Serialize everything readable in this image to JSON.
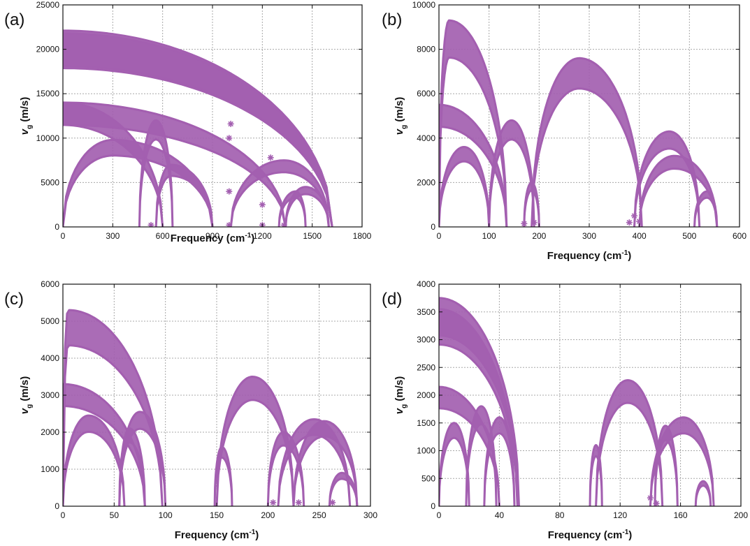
{
  "figure": {
    "series_color": "#a35fb0",
    "grid_color": "#a8a8a8",
    "axis_color": "#111111"
  },
  "chart_data": [
    {
      "panel_label": "(a)",
      "type": "scatter",
      "xlabel": "Frequency (cm",
      "xlabel_sup": "-1",
      "xlabel_end": ")",
      "ylabel": "v",
      "ylabel_sub": "g",
      "ylabel_unit": " (m/s)",
      "xlim": [
        0,
        1800
      ],
      "ylim": [
        0,
        25000
      ],
      "xticks": [
        0,
        300,
        600,
        900,
        1200,
        1500,
        1800
      ],
      "yticks": [
        0,
        5000,
        10000,
        15000,
        20000,
        25000
      ],
      "grid": true,
      "bands": [
        {
          "x0": 0,
          "x1": 900,
          "peak_x": 300,
          "peak": 9800
        },
        {
          "x0": 0,
          "x1": 600,
          "peak_x": 0,
          "peak": 14000
        },
        {
          "x0": 0,
          "x1": 1340,
          "peak_x": 0,
          "peak": 14000
        },
        {
          "x0": 0,
          "x1": 1620,
          "peak_x": 0,
          "peak": 22100
        },
        {
          "x0": 0,
          "x1": 1620,
          "peak_x": 0,
          "peak": 21800
        },
        {
          "x0": 460,
          "x1": 660,
          "peak_x": 560,
          "peak": 12000
        },
        {
          "x0": 560,
          "x1": 900,
          "peak_x": 650,
          "peak": 7000
        },
        {
          "x0": 1010,
          "x1": 1600,
          "peak_x": 1330,
          "peak": 7500
        },
        {
          "x0": 1340,
          "x1": 1600,
          "peak_x": 1460,
          "peak": 4500
        },
        {
          "x0": 1300,
          "x1": 1460,
          "peak_x": 1400,
          "peak": 4000
        }
      ],
      "markers": [
        {
          "x": 1000,
          "y": 4000
        },
        {
          "x": 1000,
          "y": 10000
        },
        {
          "x": 1010,
          "y": 11600
        },
        {
          "x": 1200,
          "y": 2500
        },
        {
          "x": 1200,
          "y": 200
        },
        {
          "x": 1000,
          "y": 200
        },
        {
          "x": 530,
          "y": 200
        },
        {
          "x": 1330,
          "y": 200
        },
        {
          "x": 1250,
          "y": 7800
        }
      ]
    },
    {
      "panel_label": "(b)",
      "type": "scatter",
      "xlabel": "Frequency (cm",
      "xlabel_sup": "-1",
      "xlabel_end": ")",
      "ylabel": "v",
      "ylabel_sub": "g",
      "ylabel_unit": " (m/s)",
      "xlim": [
        0,
        600
      ],
      "ylim": [
        0,
        10000
      ],
      "xticks": [
        0,
        100,
        200,
        300,
        400,
        500,
        600
      ],
      "yticks": [
        0,
        2000,
        4000,
        6000,
        8000,
        10000
      ],
      "grid": true,
      "bands": [
        {
          "x0": 0,
          "x1": 135,
          "peak_x": 20,
          "peak": 9300
        },
        {
          "x0": 0,
          "x1": 100,
          "peak_x": 50,
          "peak": 3600
        },
        {
          "x0": 0,
          "x1": 135,
          "peak_x": 0,
          "peak": 5500
        },
        {
          "x0": 100,
          "x1": 190,
          "peak_x": 145,
          "peak": 4800
        },
        {
          "x0": 170,
          "x1": 200,
          "peak_x": 185,
          "peak": 2000
        },
        {
          "x0": 185,
          "x1": 405,
          "peak_x": 280,
          "peak": 7600
        },
        {
          "x0": 390,
          "x1": 520,
          "peak_x": 460,
          "peak": 4300
        },
        {
          "x0": 400,
          "x1": 555,
          "peak_x": 470,
          "peak": 3200
        },
        {
          "x0": 510,
          "x1": 555,
          "peak_x": 535,
          "peak": 1600
        }
      ],
      "markers": [
        {
          "x": 380,
          "y": 200
        },
        {
          "x": 390,
          "y": 500
        },
        {
          "x": 400,
          "y": 250
        },
        {
          "x": 190,
          "y": 200
        },
        {
          "x": 170,
          "y": 150
        }
      ]
    },
    {
      "panel_label": "(c)",
      "type": "scatter",
      "xlabel": "Frequency (cm",
      "xlabel_sup": "-1",
      "xlabel_end": ")",
      "ylabel": "v",
      "ylabel_sub": "g",
      "ylabel_unit": " (m/s)",
      "xlim": [
        0,
        300
      ],
      "ylim": [
        0,
        6000
      ],
      "xticks": [
        0,
        50,
        100,
        150,
        200,
        250,
        300
      ],
      "yticks": [
        0,
        1000,
        2000,
        3000,
        4000,
        5000,
        6000
      ],
      "grid": true,
      "bands": [
        {
          "x0": 0,
          "x1": 97,
          "peak_x": 5,
          "peak": 5300
        },
        {
          "x0": 0,
          "x1": 80,
          "peak_x": 0,
          "peak": 3300
        },
        {
          "x0": 0,
          "x1": 60,
          "peak_x": 25,
          "peak": 2450
        },
        {
          "x0": 55,
          "x1": 100,
          "peak_x": 75,
          "peak": 2550
        },
        {
          "x0": 55,
          "x1": 80,
          "peak_x": 65,
          "peak": 2100
        },
        {
          "x0": 148,
          "x1": 165,
          "peak_x": 155,
          "peak": 1600
        },
        {
          "x0": 150,
          "x1": 225,
          "peak_x": 185,
          "peak": 3500
        },
        {
          "x0": 200,
          "x1": 235,
          "peak_x": 215,
          "peak": 2000
        },
        {
          "x0": 210,
          "x1": 280,
          "peak_x": 245,
          "peak": 2350
        },
        {
          "x0": 225,
          "x1": 287,
          "peak_x": 255,
          "peak": 2300
        },
        {
          "x0": 260,
          "x1": 287,
          "peak_x": 272,
          "peak": 900
        }
      ],
      "markers": [
        {
          "x": 205,
          "y": 100
        },
        {
          "x": 230,
          "y": 100
        },
        {
          "x": 263,
          "y": 100
        }
      ]
    },
    {
      "panel_label": "(d)",
      "type": "scatter",
      "xlabel": "Frequency (cm",
      "xlabel_sup": "-1",
      "xlabel_end": ")",
      "ylabel": "v",
      "ylabel_sub": "g",
      "ylabel_unit": " (m/s)",
      "xlim": [
        0,
        200
      ],
      "ylim": [
        0,
        4000
      ],
      "xticks": [
        0,
        40,
        80,
        120,
        160,
        200
      ],
      "yticks": [
        0,
        500,
        1000,
        1500,
        2000,
        2500,
        3000,
        3500,
        4000
      ],
      "grid": true,
      "bands": [
        {
          "x0": 0,
          "x1": 53,
          "peak_x": 0,
          "peak": 3750
        },
        {
          "x0": 0,
          "x1": 52,
          "peak_x": 0,
          "peak": 3550
        },
        {
          "x0": 0,
          "x1": 40,
          "peak_x": 0,
          "peak": 2150
        },
        {
          "x0": 0,
          "x1": 20,
          "peak_x": 10,
          "peak": 1500
        },
        {
          "x0": 18,
          "x1": 38,
          "peak_x": 28,
          "peak": 1800
        },
        {
          "x0": 30,
          "x1": 50,
          "peak_x": 40,
          "peak": 1600
        },
        {
          "x0": 100,
          "x1": 108,
          "peak_x": 104,
          "peak": 1100
        },
        {
          "x0": 104,
          "x1": 148,
          "peak_x": 125,
          "peak": 2270
        },
        {
          "x0": 140,
          "x1": 182,
          "peak_x": 162,
          "peak": 1600
        },
        {
          "x0": 143,
          "x1": 158,
          "peak_x": 150,
          "peak": 1450
        },
        {
          "x0": 170,
          "x1": 180,
          "peak_x": 175,
          "peak": 450
        }
      ],
      "markers": [
        {
          "x": 140,
          "y": 150
        },
        {
          "x": 144,
          "y": 50
        }
      ]
    }
  ]
}
